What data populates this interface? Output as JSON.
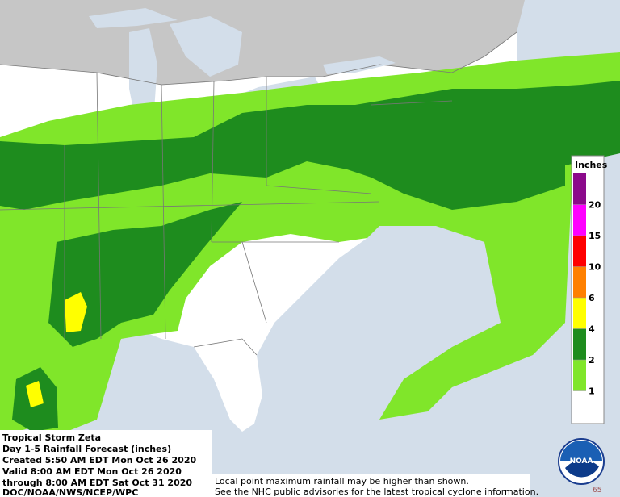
{
  "info": {
    "title": "Tropical Storm Zeta",
    "product": "Day 1-5 Rainfall Forecast (inches)",
    "created": "Created 5:50 AM EDT Mon Oct 26 2020",
    "valid": "Valid 8:00 AM EDT Mon Oct 26 2020",
    "through": "through 8:00 AM EDT Sat Oct 31 2020",
    "source": "DOC/NOAA/NWS/NCEP/WPC"
  },
  "legend": {
    "title": "Inches",
    "ticks": [
      20,
      15,
      10,
      6,
      4,
      2,
      1
    ],
    "colors": [
      "#8b0a8b",
      "#ff00ff",
      "#ff0000",
      "#ff8000",
      "#ffff00",
      "#1e8c1e",
      "#80e62a",
      "#ffffff"
    ]
  },
  "disclaimer": [
    "Local point maximum rainfall may be higher than shown.",
    "See the NHC public advisories for the latest tropical cyclone information."
  ],
  "logo": "NOAA",
  "corner_number": "65"
}
